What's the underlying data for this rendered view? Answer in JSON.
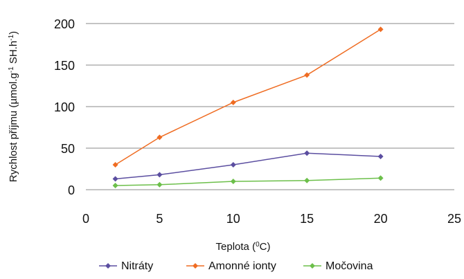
{
  "chart_data": {
    "type": "line",
    "xlabel": "Teplota (",
    "xlabel_sup": "0",
    "xlabel_suffix": "C)",
    "ylabel_parts": [
      "Rychlost příjmu (µmol.g",
      "-1",
      " SH.h",
      "-1",
      ")"
    ],
    "xlim": [
      0,
      25
    ],
    "ylim": [
      0,
      200
    ],
    "x_ticks": [
      "0",
      "5",
      "10",
      "15",
      "20",
      "25"
    ],
    "y_ticks": [
      "0",
      "50",
      "100",
      "150",
      "200"
    ],
    "grid": "horizontal",
    "legend_position": "bottom",
    "series": [
      {
        "name": "Nitráty",
        "color": "#5b4ea0",
        "x": [
          2,
          5,
          10,
          15,
          20
        ],
        "y": [
          13,
          18,
          30,
          44,
          40
        ]
      },
      {
        "name": "Amonné ionty",
        "color": "#ef6c22",
        "x": [
          2,
          5,
          10,
          15,
          20
        ],
        "y": [
          30,
          63,
          105,
          138,
          193
        ]
      },
      {
        "name": "Močovina",
        "color": "#6cbf4a",
        "x": [
          2,
          5,
          10,
          15,
          20
        ],
        "y": [
          5,
          6,
          10,
          11,
          14
        ]
      }
    ]
  }
}
